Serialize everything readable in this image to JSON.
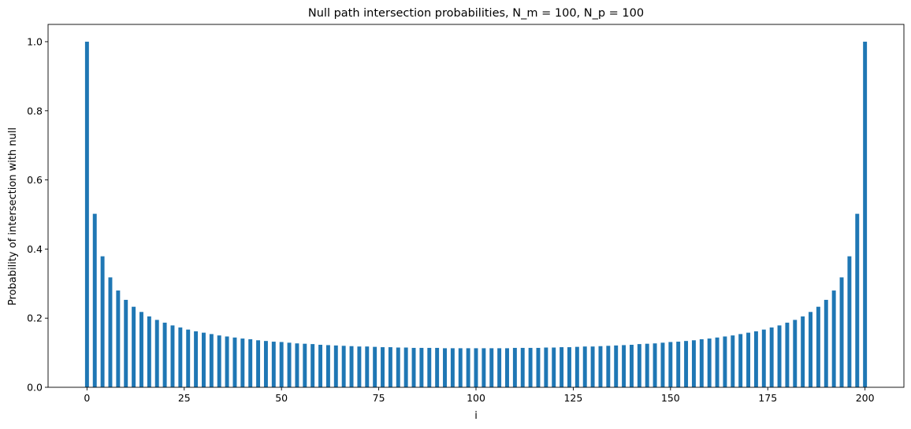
{
  "chart_data": {
    "type": "bar",
    "title": "Null path intersection probabilities, N_m = 100, N_p = 100",
    "xlabel": "i",
    "ylabel": "Probability of intersection with null",
    "xlim": [
      -10,
      210
    ],
    "ylim": [
      0,
      1.05
    ],
    "xticks": [
      0,
      25,
      50,
      75,
      100,
      125,
      150,
      175,
      200
    ],
    "yticks": [
      0.0,
      0.2,
      0.4,
      0.6,
      0.8,
      1.0
    ],
    "xtick_labels": [
      "0",
      "25",
      "50",
      "75",
      "100",
      "125",
      "150",
      "175",
      "200"
    ],
    "ytick_labels": [
      "0.0",
      "0.2",
      "0.4",
      "0.6",
      "0.8",
      "1.0"
    ],
    "bar_color": "#1f77b4",
    "bar_width": 1.0,
    "grid": false,
    "legend": "none",
    "x": [
      0,
      2,
      4,
      6,
      8,
      10,
      12,
      14,
      16,
      18,
      20,
      22,
      24,
      26,
      28,
      30,
      32,
      34,
      36,
      38,
      40,
      42,
      44,
      46,
      48,
      50,
      52,
      54,
      56,
      58,
      60,
      62,
      64,
      66,
      68,
      70,
      72,
      74,
      76,
      78,
      80,
      82,
      84,
      86,
      88,
      90,
      92,
      94,
      96,
      98,
      100,
      102,
      104,
      106,
      108,
      110,
      112,
      114,
      116,
      118,
      120,
      122,
      124,
      126,
      128,
      130,
      132,
      134,
      136,
      138,
      140,
      142,
      144,
      146,
      148,
      150,
      152,
      154,
      156,
      158,
      160,
      162,
      164,
      166,
      168,
      170,
      172,
      174,
      176,
      178,
      180,
      182,
      184,
      186,
      188,
      190,
      192,
      194,
      196,
      198,
      200
    ],
    "values": [
      1.0,
      0.502,
      0.379,
      0.318,
      0.28,
      0.253,
      0.233,
      0.218,
      0.205,
      0.195,
      0.187,
      0.179,
      0.173,
      0.167,
      0.162,
      0.158,
      0.154,
      0.15,
      0.147,
      0.144,
      0.141,
      0.139,
      0.136,
      0.134,
      0.132,
      0.131,
      0.129,
      0.127,
      0.126,
      0.125,
      0.123,
      0.122,
      0.121,
      0.12,
      0.119,
      0.118,
      0.118,
      0.117,
      0.116,
      0.116,
      0.115,
      0.115,
      0.114,
      0.114,
      0.114,
      0.114,
      0.113,
      0.113,
      0.113,
      0.113,
      0.113,
      0.113,
      0.113,
      0.113,
      0.113,
      0.114,
      0.114,
      0.114,
      0.114,
      0.115,
      0.115,
      0.116,
      0.116,
      0.117,
      0.118,
      0.118,
      0.119,
      0.12,
      0.121,
      0.122,
      0.123,
      0.125,
      0.126,
      0.127,
      0.129,
      0.131,
      0.132,
      0.134,
      0.136,
      0.139,
      0.141,
      0.144,
      0.147,
      0.15,
      0.154,
      0.158,
      0.162,
      0.167,
      0.173,
      0.179,
      0.187,
      0.195,
      0.205,
      0.218,
      0.233,
      0.253,
      0.28,
      0.318,
      0.379,
      0.502,
      1.0
    ]
  }
}
